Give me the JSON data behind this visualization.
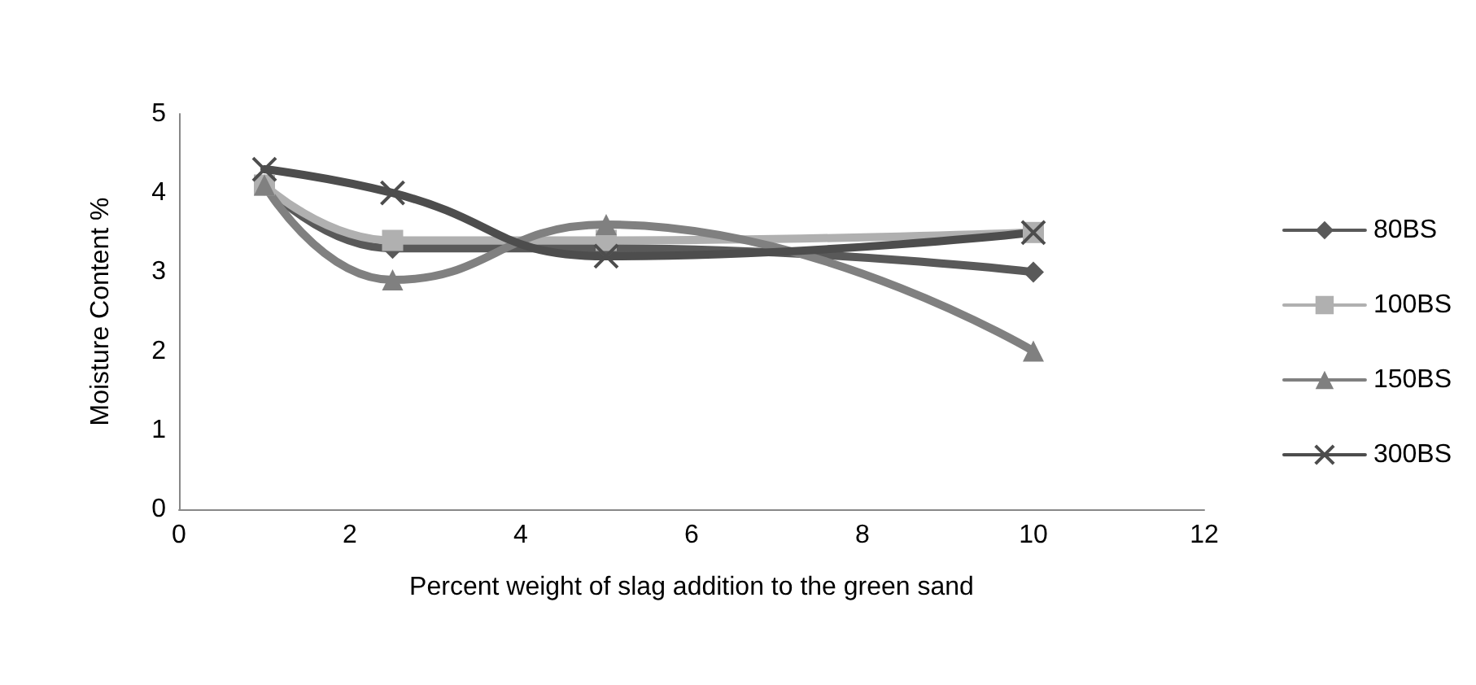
{
  "chart_data": {
    "type": "line",
    "xlabel": "Percent weight of slag addition to the green sand",
    "ylabel": "Moisture Content %",
    "x": [
      1,
      2.5,
      5,
      10
    ],
    "series": [
      {
        "name": "80BS",
        "color": "#595959",
        "marker": "diamond",
        "values": [
          4.1,
          3.3,
          3.3,
          3.0
        ]
      },
      {
        "name": "100BS",
        "color": "#b0b0b0",
        "marker": "square",
        "values": [
          4.1,
          3.4,
          3.4,
          3.5
        ]
      },
      {
        "name": "150BS",
        "color": "#808080",
        "marker": "triangle",
        "values": [
          4.1,
          2.9,
          3.6,
          2.0
        ]
      },
      {
        "name": "300BS",
        "color": "#4d4d4d",
        "marker": "cross",
        "values": [
          4.3,
          4.0,
          3.2,
          3.5
        ]
      }
    ],
    "xlim": [
      0,
      12
    ],
    "xticks": [
      0,
      2,
      4,
      6,
      8,
      10,
      12
    ],
    "ylim": [
      0,
      5
    ],
    "yticks": [
      0,
      1,
      2,
      3,
      4,
      5
    ],
    "grid": false,
    "legend": "right"
  }
}
